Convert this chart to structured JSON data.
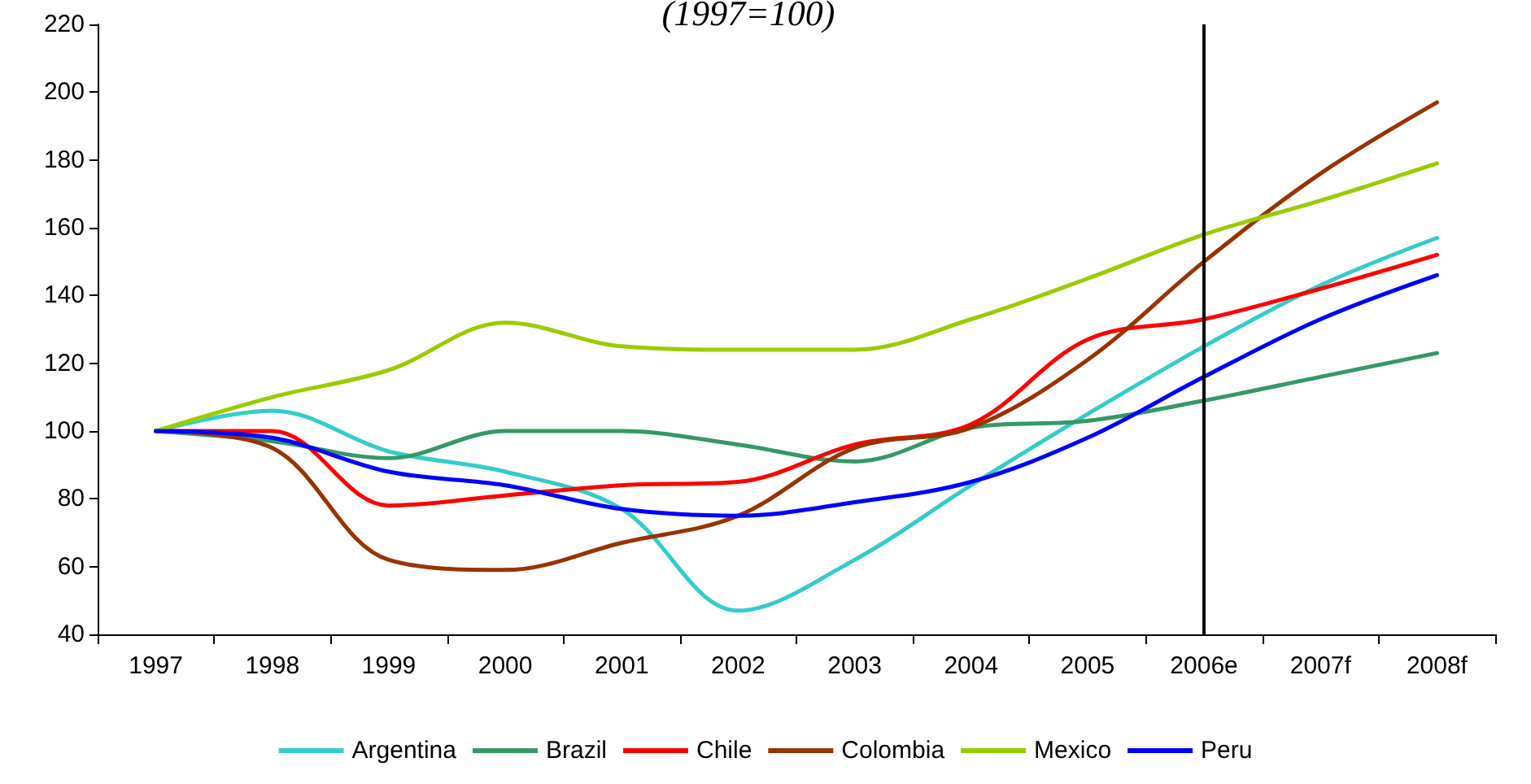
{
  "chart_data": {
    "type": "line",
    "subtitle": "(1997=100)",
    "categories": [
      "1997",
      "1998",
      "1999",
      "2000",
      "2001",
      "2002",
      "2003",
      "2004",
      "2005",
      "2006e",
      "2007f",
      "2008f"
    ],
    "series": [
      {
        "name": "Argentina",
        "color": "#33cccc",
        "values": [
          100,
          106,
          94,
          88,
          77,
          47,
          62,
          84,
          105,
          125,
          143,
          157
        ]
      },
      {
        "name": "Brazil",
        "color": "#339966",
        "values": [
          100,
          97,
          92,
          100,
          100,
          96,
          91,
          101,
          103,
          109,
          116,
          123
        ]
      },
      {
        "name": "Chile",
        "color": "#ff0000",
        "values": [
          100,
          100,
          78,
          81,
          84,
          85,
          96,
          102,
          127,
          133,
          142,
          152
        ]
      },
      {
        "name": "Colombia",
        "color": "#993300",
        "values": [
          100,
          95,
          62,
          59,
          67,
          75,
          95,
          101,
          121,
          150,
          176,
          197
        ]
      },
      {
        "name": "Mexico",
        "color": "#99cc00",
        "values": [
          100,
          110,
          118,
          132,
          125,
          124,
          124,
          133,
          145,
          158,
          168,
          179
        ]
      },
      {
        "name": "Peru",
        "color": "#0000ff",
        "values": [
          100,
          98,
          88,
          84,
          77,
          75,
          79,
          85,
          98,
          116,
          133,
          146
        ]
      }
    ],
    "ylim": [
      40,
      220
    ],
    "yticks": [
      40,
      60,
      80,
      100,
      120,
      140,
      160,
      180,
      200,
      220
    ],
    "ref_lines": [
      {
        "axis": "x",
        "value": "2006e",
        "color": "#000000"
      }
    ],
    "grid": false,
    "legend": "bottom",
    "marker": "none",
    "line_style": "solid"
  }
}
